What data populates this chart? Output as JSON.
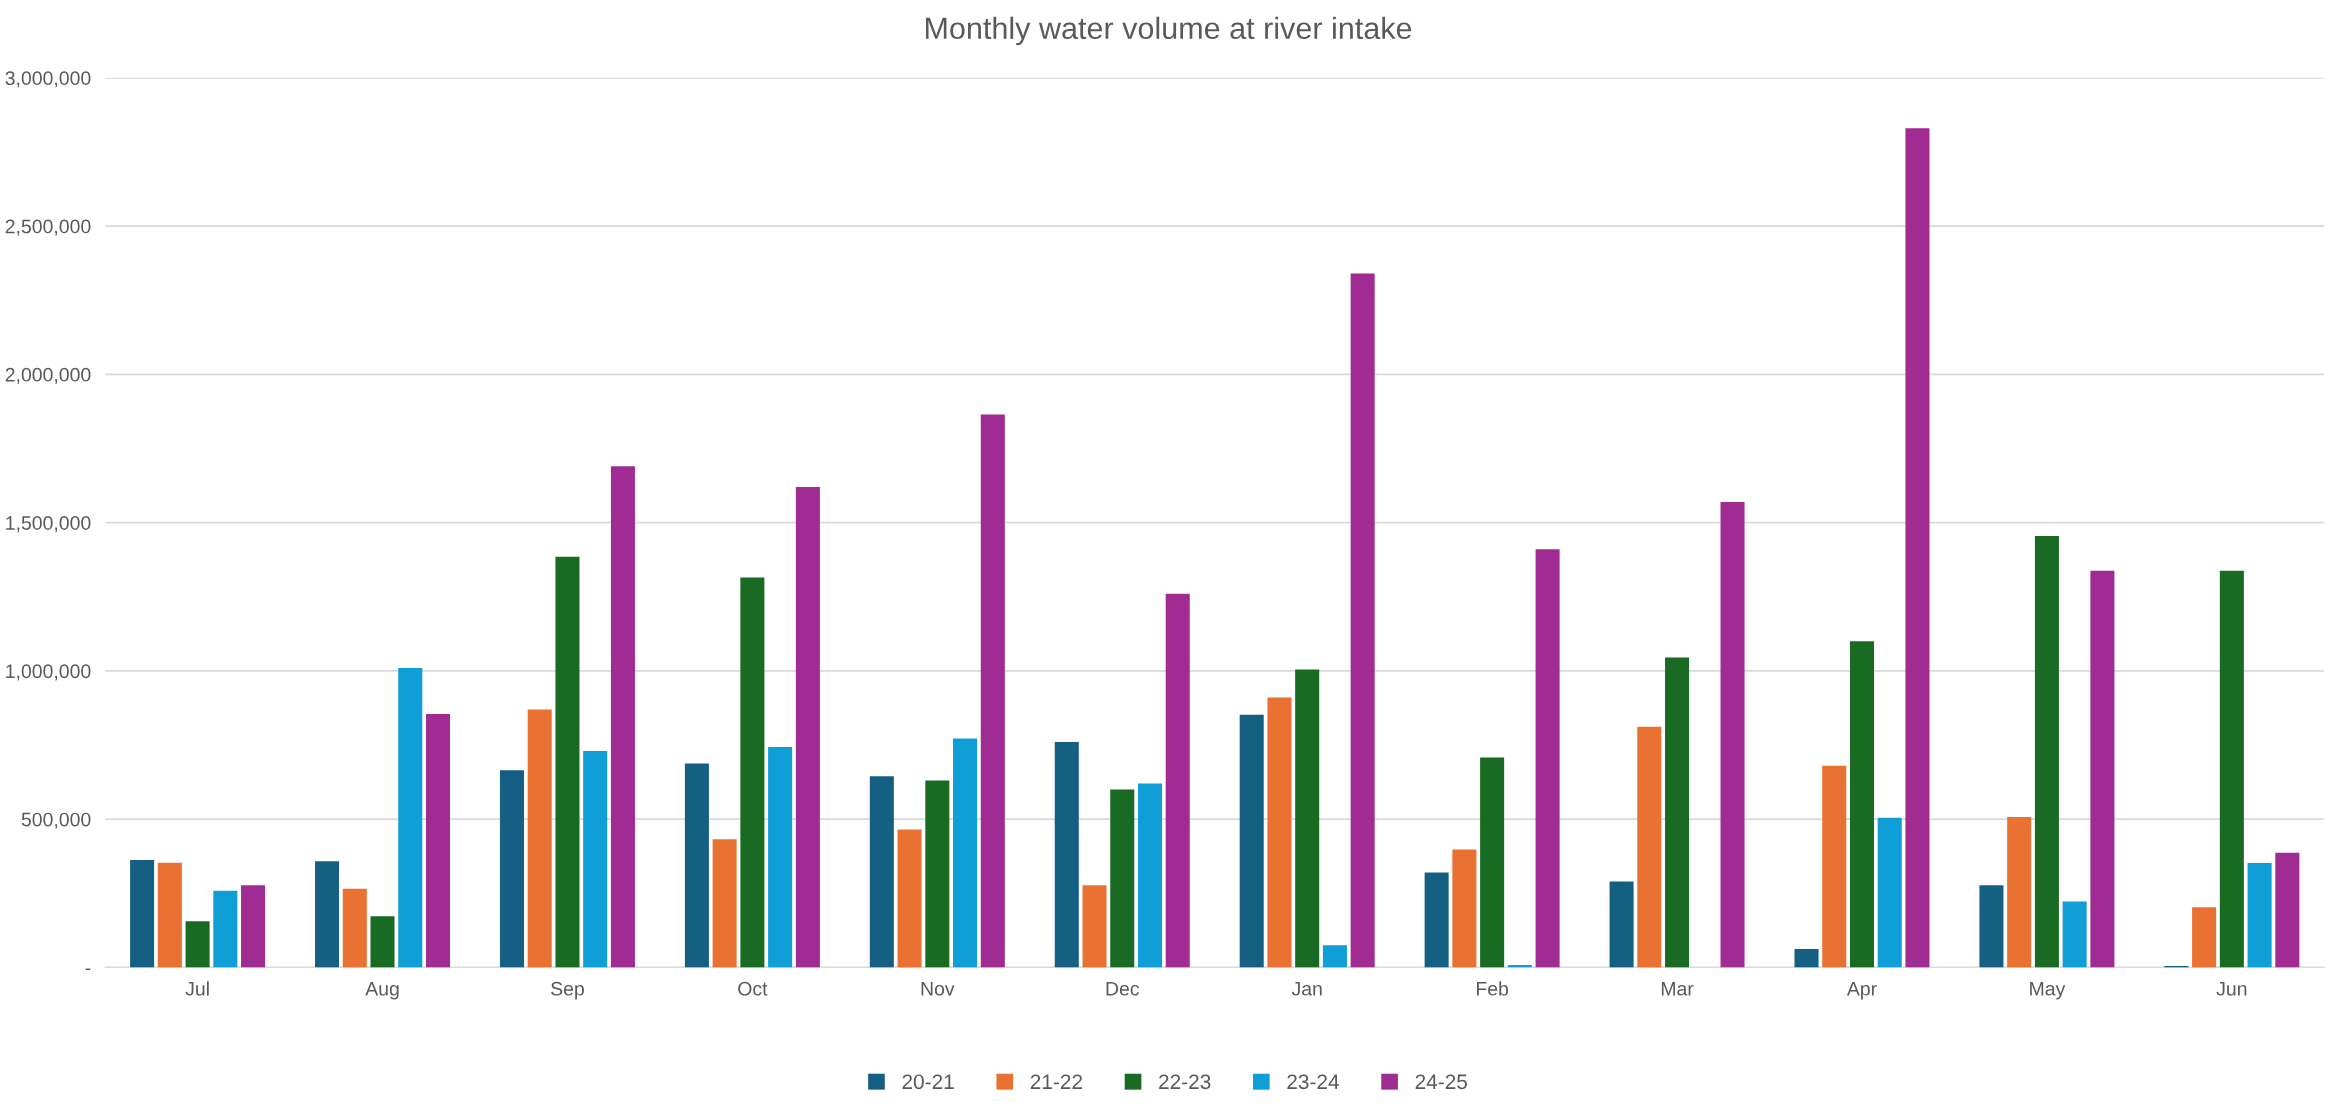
{
  "chart_data": {
    "type": "bar",
    "title": "Monthly water volume at river intake",
    "categories": [
      "Jul",
      "Aug",
      "Sep",
      "Oct",
      "Nov",
      "Dec",
      "Jan",
      "Feb",
      "Mar",
      "Apr",
      "May",
      "Jun"
    ],
    "series": [
      {
        "name": "20-21",
        "color": "#156082",
        "values": [
          362000,
          358000,
          665000,
          688000,
          645000,
          760000,
          852000,
          320000,
          290000,
          62000,
          277000,
          5000
        ]
      },
      {
        "name": "21-22",
        "color": "#e97132",
        "values": [
          353000,
          265000,
          870000,
          432000,
          465000,
          277000,
          910000,
          398000,
          812000,
          680000,
          507000,
          203000
        ]
      },
      {
        "name": "22-23",
        "color": "#196b24",
        "values": [
          156000,
          173000,
          1385000,
          1315000,
          630000,
          600000,
          1005000,
          708000,
          1045000,
          1100000,
          1455000,
          1338000
        ]
      },
      {
        "name": "23-24",
        "color": "#0f9ed5",
        "values": [
          259000,
          1010000,
          730000,
          743000,
          772000,
          620000,
          75000,
          8000,
          null,
          505000,
          222000,
          352000
        ]
      },
      {
        "name": "24-25",
        "color": "#a02b93",
        "values": [
          277000,
          855000,
          1690000,
          1620000,
          1865000,
          1260000,
          2340000,
          1410000,
          1570000,
          2830000,
          1338000,
          387000
        ]
      }
    ],
    "ylim": [
      0,
      3000000
    ],
    "yticks": [
      {
        "value": 0,
        "label": "-"
      },
      {
        "value": 500000,
        "label": "500,000"
      },
      {
        "value": 1000000,
        "label": "1,000,000"
      },
      {
        "value": 1500000,
        "label": "1,500,000"
      },
      {
        "value": 2000000,
        "label": "2,000,000"
      },
      {
        "value": 2500000,
        "label": "2,500,000"
      },
      {
        "value": 3000000,
        "label": "3,000,000"
      }
    ],
    "grid": "y",
    "legend": "bottom"
  }
}
